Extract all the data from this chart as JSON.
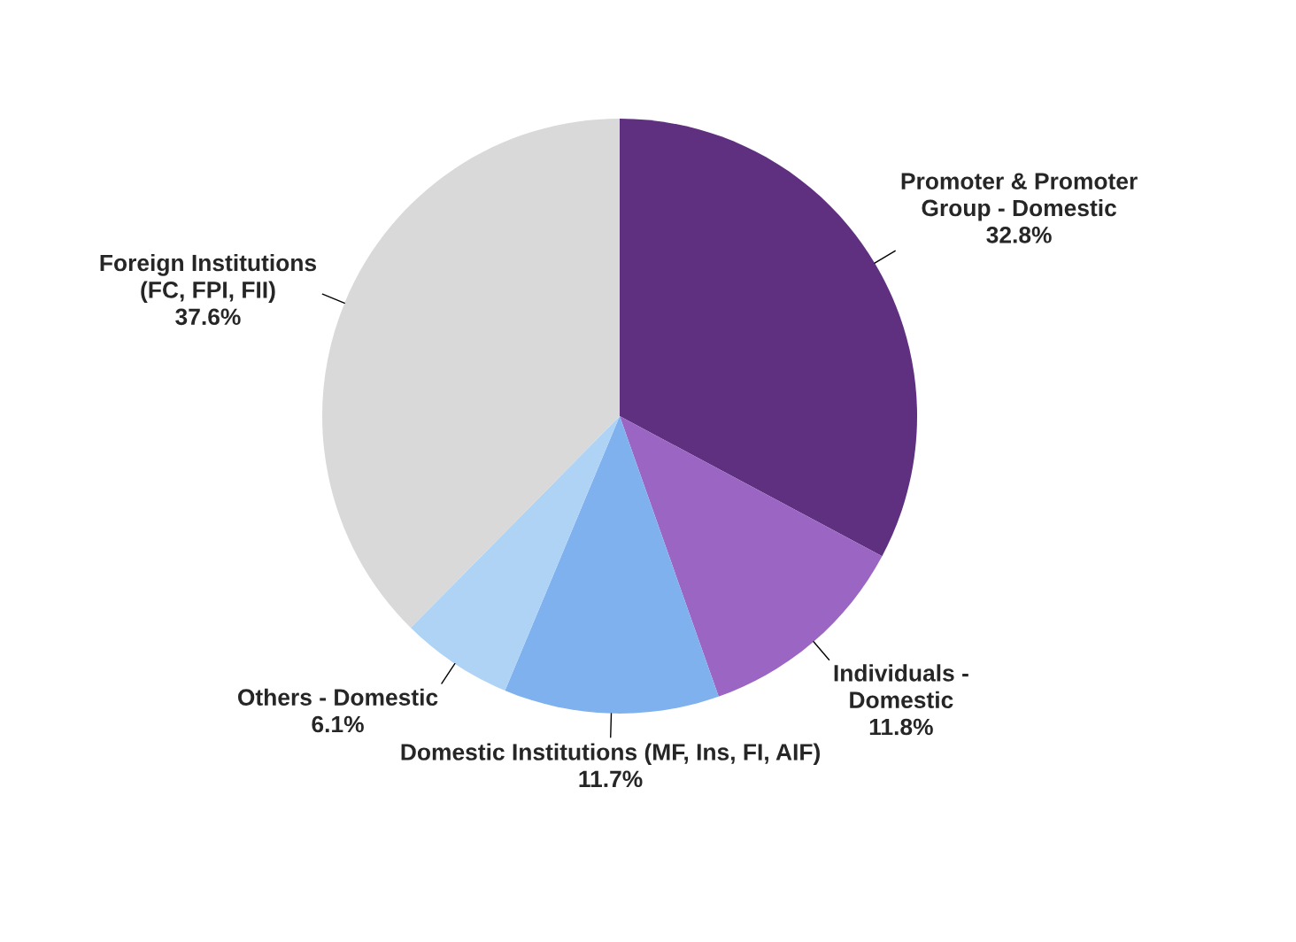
{
  "chart_data": {
    "type": "pie",
    "categories": [
      "Promoter & Promoter\nGroup - Domestic",
      "Individuals -\nDomestic",
      "Domestic Institutions (MF, Ins, FI, AIF)",
      "Others - Domestic",
      "Foreign Institutions\n(FC, FPI, FII)"
    ],
    "values": [
      32.8,
      11.8,
      11.7,
      6.1,
      37.6
    ],
    "value_labels": [
      "32.8%",
      "11.8%",
      "11.7%",
      "6.1%",
      "37.6%"
    ],
    "colors": [
      "#5f2f80",
      "#9b65c3",
      "#80b1ef",
      "#aed3f5",
      "#d9d9d9"
    ]
  }
}
